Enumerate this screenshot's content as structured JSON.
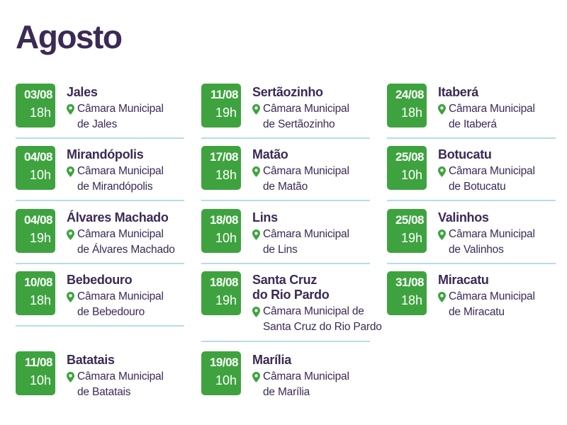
{
  "page": {
    "title": "Agosto"
  },
  "columns": [
    [
      {
        "date": "03/08",
        "time": "18h",
        "city": "Jales",
        "venue": [
          "Câmara Municipal",
          "de Jales"
        ]
      },
      {
        "date": "04/08",
        "time": "10h",
        "city": "Mirandópolis",
        "venue": [
          "Câmara Municipal",
          "de Mirandópolis"
        ]
      },
      {
        "date": "04/08",
        "time": "19h",
        "city": "Álvares Machado",
        "venue": [
          "Câmara Municipal",
          "de Álvares Machado"
        ]
      },
      {
        "date": "10/08",
        "time": "18h",
        "city": "Bebedouro",
        "venue": [
          "Câmara Municipal",
          "de Bebedouro"
        ]
      },
      {
        "date": "11/08",
        "time": "10h",
        "city": "Batatais",
        "venue": [
          "Câmara Municipal",
          "de Batatais"
        ]
      }
    ],
    [
      {
        "date": "11/08",
        "time": "19h",
        "city": "Sertãozinho",
        "venue": [
          "Câmara Municipal",
          "de Sertãozinho"
        ]
      },
      {
        "date": "17/08",
        "time": "18h",
        "city": "Matão",
        "venue": [
          "Câmara Municipal",
          "de Matão"
        ]
      },
      {
        "date": "18/08",
        "time": "10h",
        "city": "Lins",
        "venue": [
          "Câmara Municipal",
          "de Lins"
        ]
      },
      {
        "date": "18/08",
        "time": "19h",
        "city": [
          "Santa Cruz",
          "do Rio Pardo"
        ],
        "venue": [
          "Câmara Municipal de",
          "Santa Cruz do Rio Pardo"
        ]
      },
      {
        "date": "19/08",
        "time": "10h",
        "city": "Marília",
        "venue": [
          "Câmara Municipal",
          "de Marília"
        ]
      }
    ],
    [
      {
        "date": "24/08",
        "time": "18h",
        "city": "Itaberá",
        "venue": [
          "Câmara Municipal",
          "de Itaberá"
        ]
      },
      {
        "date": "25/08",
        "time": "10h",
        "city": "Botucatu",
        "venue": [
          "Câmara Municipal",
          "de Botucatu"
        ]
      },
      {
        "date": "25/08",
        "time": "19h",
        "city": "Valinhos",
        "venue": [
          "Câmara Municipal",
          "de Valinhos"
        ]
      },
      {
        "date": "31/08",
        "time": "18h",
        "city": "Miracatu",
        "venue": [
          "Câmara Municipal",
          "de Miracatu"
        ]
      }
    ]
  ],
  "colors": {
    "badge": "#3ea33f",
    "text": "#3b2a55",
    "pin": "#3ea33f",
    "divider": "#b8dde6"
  },
  "icons": {
    "location": "map-pin-icon"
  }
}
